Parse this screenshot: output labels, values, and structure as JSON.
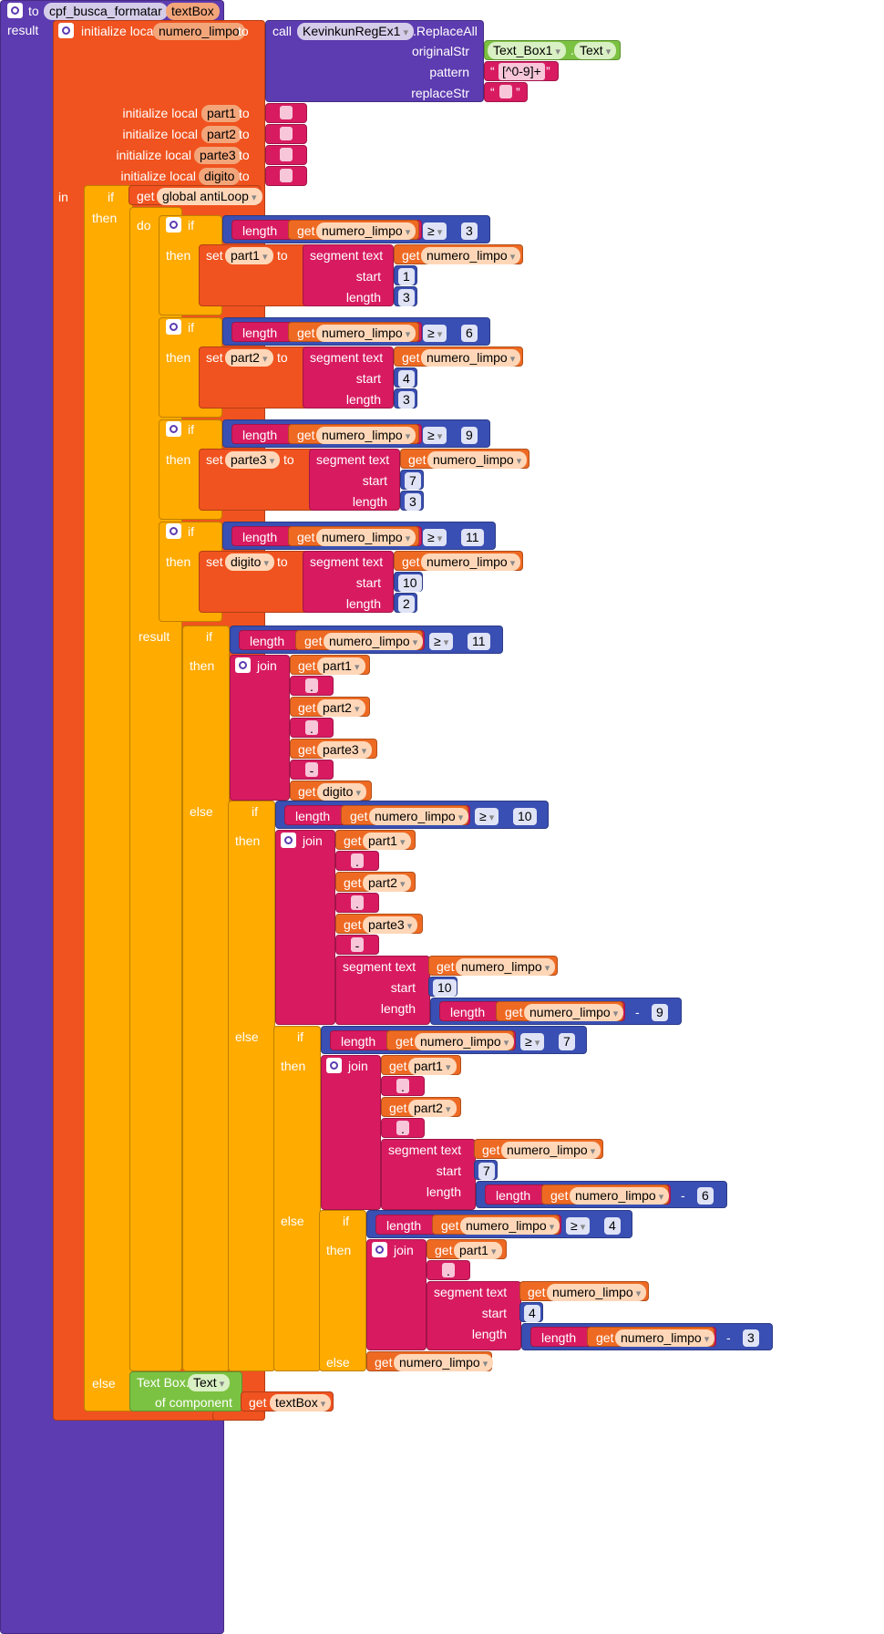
{
  "procedure": {
    "keyword_to": "to",
    "name": "cpf_busca_formatar",
    "param": "textBox",
    "keyword_result": "result",
    "keyword_in": "in"
  },
  "init": {
    "label": "initialize local",
    "to": "to",
    "numero_limpo": "numero_limpo",
    "part1": "part1",
    "part2": "part2",
    "parte3": "parte3",
    "digito": "digito"
  },
  "regex": {
    "call": "call",
    "component": "KevinkunRegEx1",
    "method": ".ReplaceAll",
    "originalStr": "originalStr",
    "pattern": "pattern",
    "replaceStr": "replaceStr",
    "textbox": "Text_Box1",
    "dot": ".",
    "prop": "Text",
    "pattern_value": "[^0-9]+"
  },
  "kw": {
    "if": "if",
    "then": "then",
    "else": "else",
    "do": "do",
    "result": "result",
    "get": "get",
    "set": "set",
    "to": "to",
    "length": "length",
    "segment_text": "segment  text",
    "start": "start",
    "join": "join",
    "gte": "≥",
    "minus": "-",
    "global_antiloop": "global antiLoop",
    "numero_limpo": "numero_limpo",
    "dot_sep": ".",
    "dash_sep": "-"
  },
  "numbers": {
    "n1": "1",
    "n2": "2",
    "n3": "3",
    "n4": "4",
    "n6": "6",
    "n7": "7",
    "n9": "9",
    "n10": "10",
    "n11": "11"
  },
  "final": {
    "text_box": "Text Box.",
    "text": "Text",
    "of_component": "of component",
    "textBox": "textBox"
  }
}
